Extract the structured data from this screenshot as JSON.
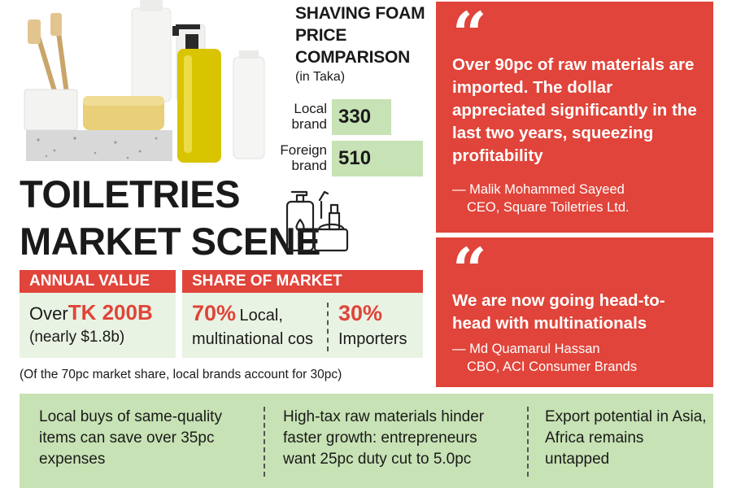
{
  "price_comparison": {
    "title": "SHAVING FOAM PRICE COMPARISON",
    "subtitle": "(in Taka)",
    "local_label_1": "Local",
    "local_label_2": "brand",
    "local_value": "330",
    "foreign_label_1": "Foreign",
    "foreign_label_2": "brand",
    "foreign_value": "510"
  },
  "title_line1": "TOILETRIES",
  "title_line2": "MARKET SCENE",
  "annual_value": {
    "heading": "ANNUAL VALUE",
    "prefix": "Over",
    "amount": "TK 200B",
    "usd": "(nearly $1.8b)"
  },
  "market_share": {
    "heading": "SHARE OF MARKET",
    "local_pct": "70%",
    "local_label_1": "Local,",
    "local_label_2": "multinational cos",
    "import_pct": "30%",
    "import_label": "Importers"
  },
  "footnote": "(Of the 70pc market share, local brands account for 30pc)",
  "quotes": [
    {
      "mark": "“",
      "text": "Over 90pc of raw materials are imported. The dollar appreciated significantly in the last two years, squeezing profitability",
      "name": "— Malik Mohammed Sayeed",
      "role": "CEO, Square Toiletries Ltd."
    },
    {
      "mark": "“",
      "text": "We are now going head-to-head with multinationals",
      "name": "— Md Quamarul Hassan",
      "role": "CBO, ACI Consumer Brands"
    }
  ],
  "bottom": [
    "Local buys of same-quality items can save over 35pc expenses",
    "High-tax raw materials hinder faster growth: entrepreneurs want 25pc duty cut to 5.0pc",
    "Export potential in Asia, Africa remains untapped"
  ],
  "colors": {
    "red": "#e0443a",
    "green": "#c7e2b4",
    "light_green": "#e9f3e3"
  },
  "icons": {
    "photo": "toiletries-photo",
    "graphic": "toiletries-icon"
  }
}
